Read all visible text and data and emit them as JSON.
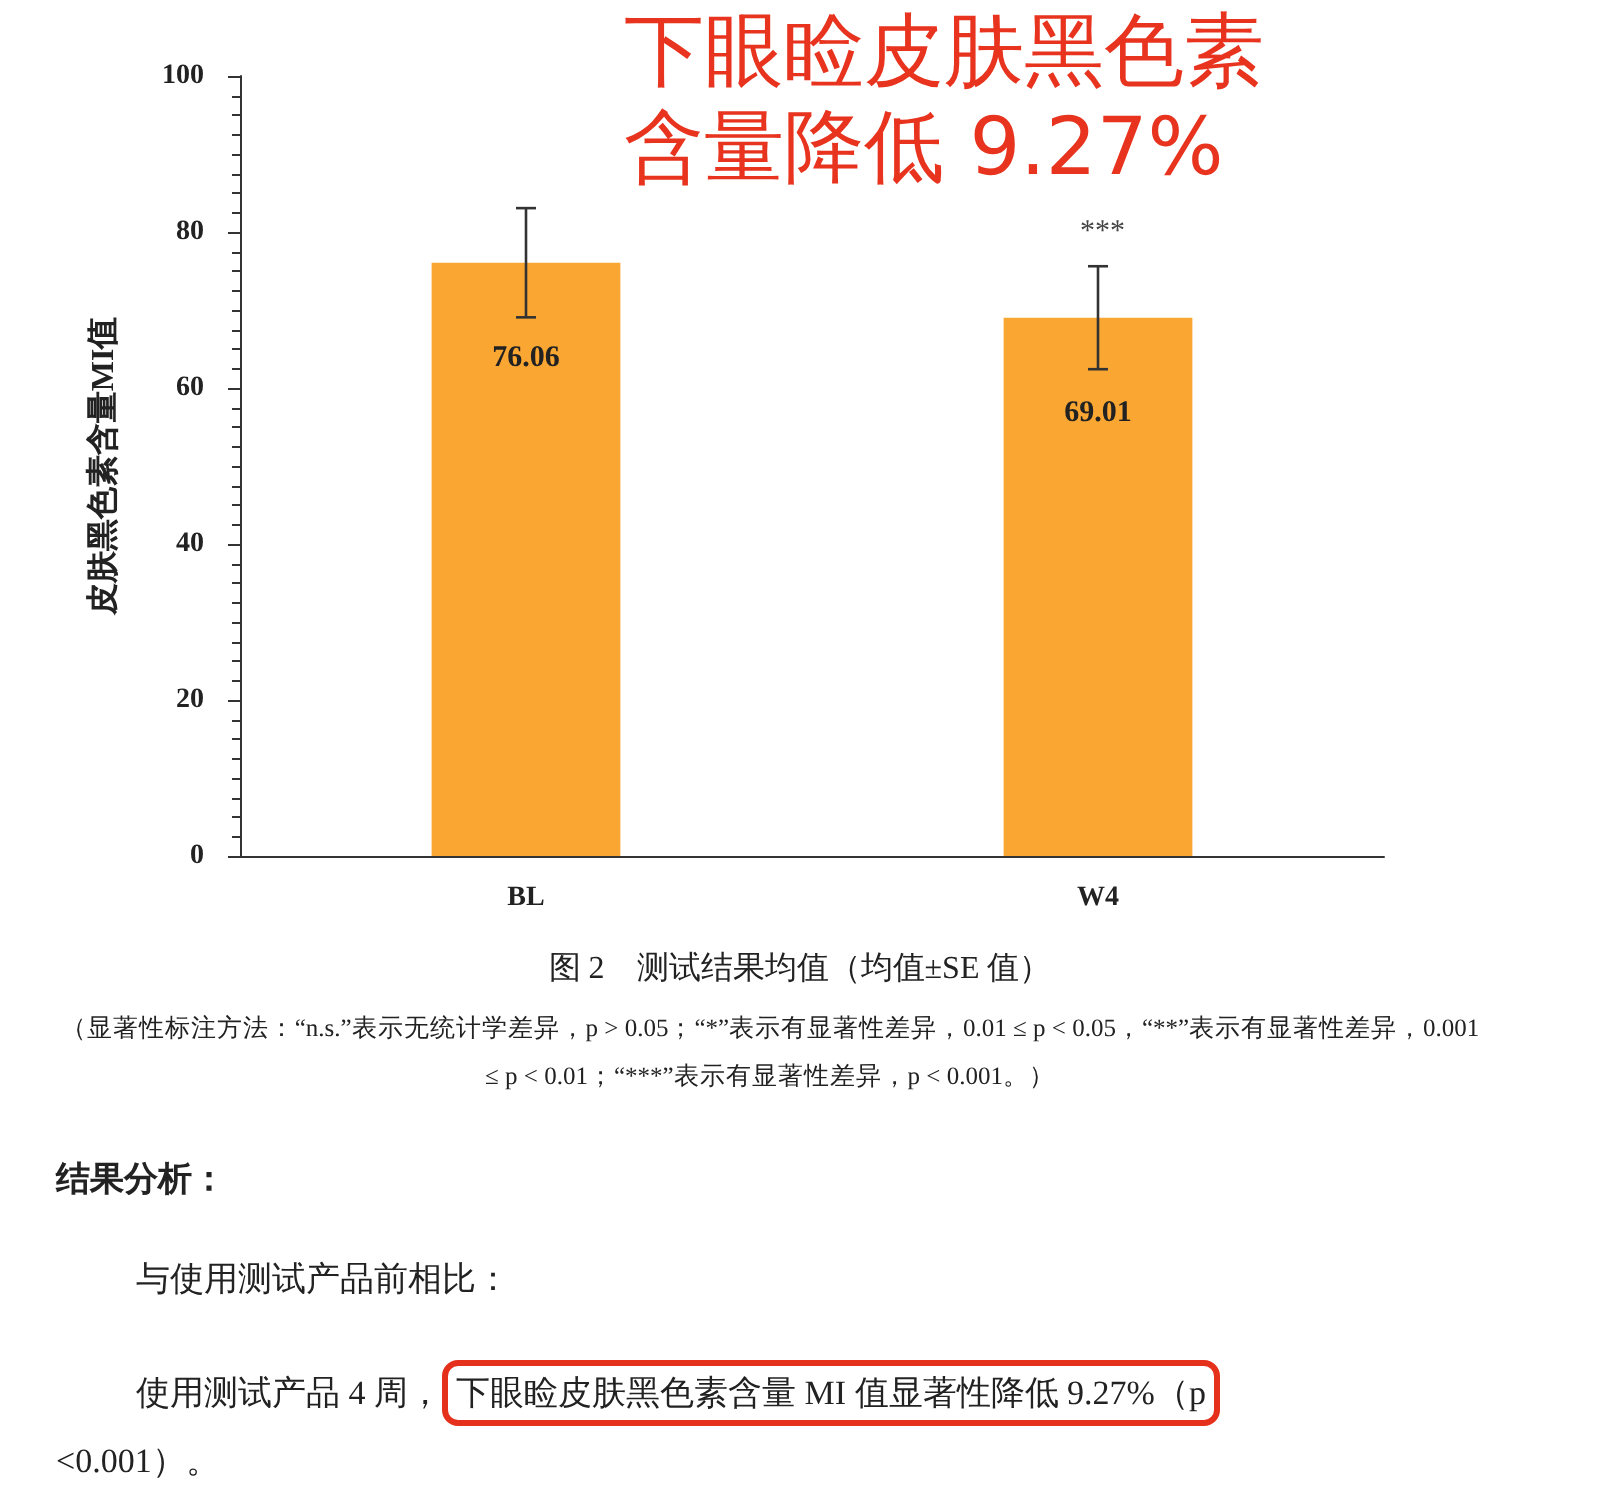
{
  "chart_data": {
    "type": "bar",
    "title": "图 2　测试结果均值（均值±SE 值）",
    "ylabel": "皮肤黑色素含量MI值",
    "categories": [
      "BL",
      "W4"
    ],
    "values": [
      76.06,
      69.01
    ],
    "errors": [
      7,
      6.6
    ],
    "color": "#f9a632",
    "data_labels": true,
    "ylim": [
      0,
      100
    ],
    "yticks": [
      0,
      20,
      40,
      60,
      80,
      100
    ],
    "grid": false,
    "annotations": [
      "下眼睑皮肤黑色素含量降低 9.27%",
      "***",
      "（显著性标注方法：“n.s.”表示无统计学差异，p > 0.05；“*”表示有显著性差异，0.01 ≤ p < 0.05，“**”表示有显著性差异，0.001 ≤ p < 0.01；“***”表示有显著性差异，p < 0.001。）",
      "结果分析：",
      "与使用测试产品前相比：",
      "使用测试产品 4 周，",
      "下眼睑皮肤黑色素含量 MI 值显著性降低 9.27%（p",
      "<0.001）。"
    ]
  }
}
